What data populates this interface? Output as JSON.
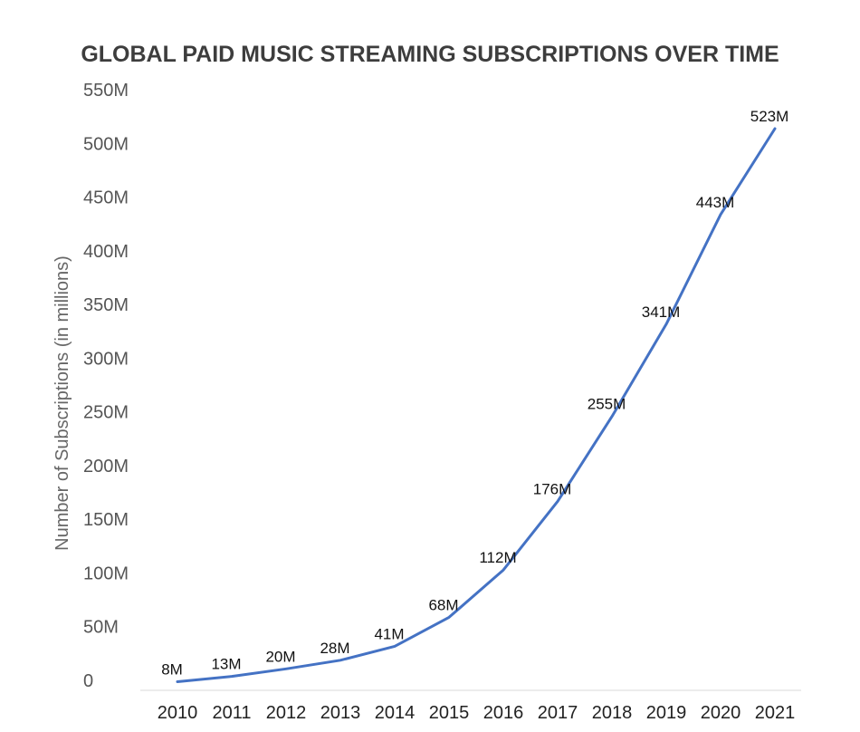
{
  "chart_data": {
    "type": "line",
    "title": "GLOBAL PAID MUSIC STREAMING SUBSCRIPTIONS OVER TIME",
    "xlabel": "",
    "ylabel": "Number of Subscriptions (in millions)",
    "ylim": [
      0,
      550
    ],
    "yticks": [
      0,
      50,
      100,
      150,
      200,
      250,
      300,
      350,
      400,
      450,
      500,
      550
    ],
    "ytick_labels": [
      "0",
      "50M",
      "100M",
      "150M",
      "200M",
      "250M",
      "300M",
      "350M",
      "400M",
      "450M",
      "500M",
      "550M"
    ],
    "categories": [
      "2010",
      "2011",
      "2012",
      "2013",
      "2014",
      "2015",
      "2016",
      "2017",
      "2018",
      "2019",
      "2020",
      "2021"
    ],
    "values": [
      8,
      13,
      20,
      28,
      41,
      68,
      112,
      176,
      255,
      341,
      443,
      523
    ],
    "data_labels": [
      "8M",
      "13M",
      "20M",
      "28M",
      "41M",
      "68M",
      "112M",
      "176M",
      "255M",
      "341M",
      "443M",
      "523M"
    ],
    "grid": false,
    "legend": "none",
    "colors": {
      "line": "#4472c4",
      "axis": "#d9d9d9"
    }
  }
}
